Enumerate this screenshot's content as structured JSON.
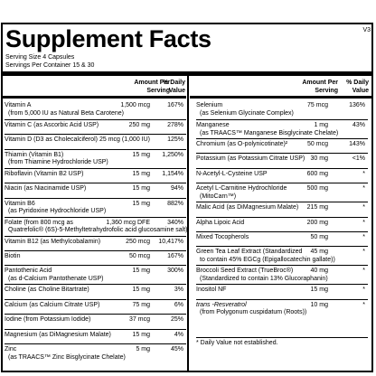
{
  "version": "V3",
  "title": "Supplement Facts",
  "serving_size": "Serving Size 4 Capsules",
  "servings_per_container": "Servings Per Container 15 & 30",
  "headers": {
    "amount": [
      "Amount Per",
      "Serving"
    ],
    "dv": [
      "% Daily",
      "Value"
    ]
  },
  "left": [
    {
      "name": "Vitamin A",
      "sub": "(from 5,000 IU as Natural Beta Carotene)",
      "amount": "1,500 mcg",
      "dv": "167%"
    },
    {
      "name": "Vitamin C (as Ascorbic Acid USP)",
      "amount": "250 mg",
      "dv": "278%"
    },
    {
      "name": "Vitamin D (D3 as Cholecalciferol)",
      "amount": "25 mcg (1,000 IU)",
      "dv": "125%"
    },
    {
      "name": "Thiamin (Vitamin B1)",
      "sub": "(from Thiamine Hydrochloride USP)",
      "amount": "15 mg",
      "dv": "1,250%"
    },
    {
      "name": "Riboflavin (Vitamin B2 USP)",
      "amount": "15 mg",
      "dv": "1,154%"
    },
    {
      "name": "Niacin (as Niacinamide USP)",
      "amount": "15 mg",
      "dv": "94%"
    },
    {
      "name": "Vitamin B6",
      "sub": "(as Pyridoxine Hydrochloride USP)",
      "amount": "15 mg",
      "dv": "882%"
    },
    {
      "name": "Folate (from 800 mcg as",
      "sub": "Quatrefolic® (6S)-5-Methyltetrahydrofolic acid glucosamine salt)",
      "amount": "1,360 mcg DFE",
      "dv": "340%"
    },
    {
      "name": "Vitamin B12 (as Methylcobalamin)",
      "amount": "250 mcg",
      "dv": "10,417%"
    },
    {
      "name": "Biotin",
      "amount": "50 mcg",
      "dv": "167%"
    },
    {
      "name": "Pantothenic Acid",
      "sub": "(as d-Calcium Pantothenate USP)",
      "amount": "15 mg",
      "dv": "300%"
    },
    {
      "name": "Choline (as Choline Bitartrate)",
      "amount": "15 mg",
      "dv": "3%"
    },
    {
      "name": "Calcium (as Calcium Citrate USP)",
      "amount": "75 mg",
      "dv": "6%"
    },
    {
      "name": "Iodine (from Potassium Iodide)",
      "amount": "37 mcg",
      "dv": "25%"
    },
    {
      "name": "Magnesium (as DiMagnesium Malate)",
      "amount": "15 mg",
      "dv": "4%"
    },
    {
      "name": "Zinc",
      "sub": "(as TRAACS™ Zinc Bisglycinate Chelate)",
      "amount": "5 mg",
      "dv": "45%"
    }
  ],
  "right": [
    {
      "name": "Selenium",
      "sub": "(as Selenium Glycinate Complex)",
      "amount": "75 mcg",
      "dv": "136%"
    },
    {
      "name": "Manganese",
      "sub": "(as TRAACS™ Manganese Bisglycinate Chelate)",
      "amount": "1 mg",
      "dv": "43%"
    },
    {
      "name": "Chromium (as O-polynicotinate)²",
      "amount": "50 mcg",
      "dv": "143%"
    },
    {
      "name": "Potassium (as Potassium Citrate USP)",
      "amount": "30 mg",
      "dv": "<1%"
    },
    {
      "name": "N-Acetyl-L-Cysteine USP",
      "amount": "600 mg",
      "dv": "*"
    },
    {
      "name": "Acetyl L-Carnitine Hydrochloride",
      "sub": "(MitoCarn™)",
      "amount": "500 mg",
      "dv": "*"
    },
    {
      "name": "Malic Acid (as DiMagnesium Malate)",
      "amount": "215 mg",
      "dv": "*"
    },
    {
      "name": "Alpha Lipoic Acid",
      "amount": "200 mg",
      "dv": "*"
    },
    {
      "name": "Mixed Tocopherols",
      "amount": "50 mg",
      "dv": "*"
    },
    {
      "name": "Green Tea Leaf Extract (Standardized",
      "sub": "to contain 45% EGCg (Epigallocatechin gallate))",
      "amount": "45 mg",
      "dv": "*"
    },
    {
      "name": "Broccoli Seed Extract (TrueBroc®)",
      "sub": "(Standardized to contain 13% Glucoraphanin)",
      "amount": "40 mg",
      "dv": "*"
    },
    {
      "name": "Inositol NF",
      "amount": "15 mg",
      "dv": "*"
    },
    {
      "name": "trans -Resveratrol",
      "sub": "(from Polygonum cuspidatum (Roots))",
      "amount": "10 mg",
      "dv": "*"
    }
  ],
  "footnote": "* Daily Value not established."
}
